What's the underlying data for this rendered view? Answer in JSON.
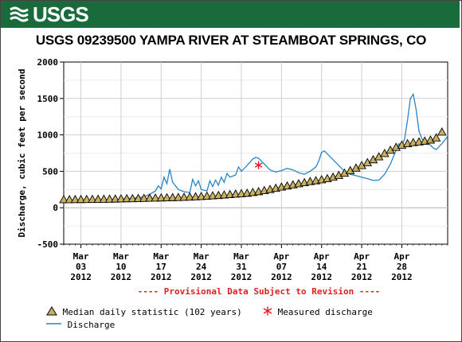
{
  "header": {
    "logo_text": "USGS",
    "title": "USGS 09239500 YAMPA RIVER AT STEAMBOAT SPRINGS, CO"
  },
  "colors": {
    "banner": "#1a6b3c",
    "discharge": "#2a84c6",
    "median_marker_fill": "#c8b061",
    "measured": "#e02020",
    "provisional": "#e02020"
  },
  "chart_data": {
    "type": "line",
    "title": "USGS 09239500 YAMPA RIVER AT STEAMBOAT SPRINGS, CO",
    "ylabel": "Discharge, cubic feet per second",
    "xlabel": "",
    "ylim": [
      -500,
      2000
    ],
    "yticks": [
      -500,
      0,
      500,
      1000,
      1500,
      2000
    ],
    "xlim": [
      "2012-02-29",
      "2012-05-06"
    ],
    "xticks": [
      {
        "date": "2012-03-03",
        "line1": "Mar",
        "line2": "03",
        "line3": "2012"
      },
      {
        "date": "2012-03-10",
        "line1": "Mar",
        "line2": "10",
        "line3": "2012"
      },
      {
        "date": "2012-03-17",
        "line1": "Mar",
        "line2": "17",
        "line3": "2012"
      },
      {
        "date": "2012-03-24",
        "line1": "Mar",
        "line2": "24",
        "line3": "2012"
      },
      {
        "date": "2012-03-31",
        "line1": "Mar",
        "line2": "31",
        "line3": "2012"
      },
      {
        "date": "2012-04-07",
        "line1": "Apr",
        "line2": "07",
        "line3": "2012"
      },
      {
        "date": "2012-04-14",
        "line1": "Apr",
        "line2": "14",
        "line3": "2012"
      },
      {
        "date": "2012-04-21",
        "line1": "Apr",
        "line2": "21",
        "line3": "2012"
      },
      {
        "date": "2012-04-28",
        "line1": "Apr",
        "line2": "28",
        "line3": "2012"
      }
    ],
    "annotation": "---- Provisional Data Subject to Revision ----",
    "grid": true,
    "series": [
      {
        "name": "Median daily statistic (102 years)",
        "marker": "triangle",
        "points": [
          [
            "2012-02-29",
            112
          ],
          [
            "2012-03-01",
            112
          ],
          [
            "2012-03-02",
            113
          ],
          [
            "2012-03-03",
            114
          ],
          [
            "2012-03-04",
            115
          ],
          [
            "2012-03-05",
            116
          ],
          [
            "2012-03-06",
            117
          ],
          [
            "2012-03-07",
            118
          ],
          [
            "2012-03-08",
            119
          ],
          [
            "2012-03-09",
            121
          ],
          [
            "2012-03-10",
            123
          ],
          [
            "2012-03-11",
            125
          ],
          [
            "2012-03-12",
            126
          ],
          [
            "2012-03-13",
            128
          ],
          [
            "2012-03-14",
            130
          ],
          [
            "2012-03-15",
            132
          ],
          [
            "2012-03-16",
            134
          ],
          [
            "2012-03-17",
            136
          ],
          [
            "2012-03-18",
            138
          ],
          [
            "2012-03-19",
            140
          ],
          [
            "2012-03-20",
            142
          ],
          [
            "2012-03-21",
            145
          ],
          [
            "2012-03-22",
            148
          ],
          [
            "2012-03-23",
            152
          ],
          [
            "2012-03-24",
            156
          ],
          [
            "2012-03-25",
            160
          ],
          [
            "2012-03-26",
            165
          ],
          [
            "2012-03-27",
            170
          ],
          [
            "2012-03-28",
            176
          ],
          [
            "2012-03-29",
            182
          ],
          [
            "2012-03-30",
            188
          ],
          [
            "2012-03-31",
            194
          ],
          [
            "2012-04-01",
            200
          ],
          [
            "2012-04-02",
            210
          ],
          [
            "2012-04-03",
            222
          ],
          [
            "2012-04-04",
            236
          ],
          [
            "2012-04-05",
            252
          ],
          [
            "2012-04-06",
            268
          ],
          [
            "2012-04-07",
            285
          ],
          [
            "2012-04-08",
            300
          ],
          [
            "2012-04-09",
            315
          ],
          [
            "2012-04-10",
            330
          ],
          [
            "2012-04-11",
            345
          ],
          [
            "2012-04-12",
            360
          ],
          [
            "2012-04-13",
            372
          ],
          [
            "2012-04-14",
            385
          ],
          [
            "2012-04-15",
            400
          ],
          [
            "2012-04-16",
            420
          ],
          [
            "2012-04-17",
            445
          ],
          [
            "2012-04-18",
            475
          ],
          [
            "2012-04-19",
            510
          ],
          [
            "2012-04-20",
            545
          ],
          [
            "2012-04-21",
            580
          ],
          [
            "2012-04-22",
            620
          ],
          [
            "2012-04-23",
            660
          ],
          [
            "2012-04-24",
            700
          ],
          [
            "2012-04-25",
            745
          ],
          [
            "2012-04-26",
            790
          ],
          [
            "2012-04-27",
            830
          ],
          [
            "2012-04-28",
            860
          ],
          [
            "2012-04-29",
            880
          ],
          [
            "2012-04-30",
            895
          ],
          [
            "2012-05-01",
            905
          ],
          [
            "2012-05-02",
            915
          ],
          [
            "2012-05-03",
            930
          ],
          [
            "2012-05-04",
            960
          ],
          [
            "2012-05-05",
            1040
          ]
        ]
      },
      {
        "name": "Measured discharge",
        "marker": "asterisk",
        "points": [
          [
            "2012-04-03",
            585
          ]
        ]
      },
      {
        "name": "Discharge",
        "marker": "line",
        "points": [
          [
            "2012-02-29",
            100
          ],
          [
            "2012-03-01",
            98
          ],
          [
            "2012-03-02",
            96
          ],
          [
            "2012-03-03",
            95
          ],
          [
            "2012-03-04",
            97
          ],
          [
            "2012-03-05",
            100
          ],
          [
            "2012-03-06",
            102
          ],
          [
            "2012-03-07",
            104
          ],
          [
            "2012-03-08",
            108
          ],
          [
            "2012-03-09",
            112
          ],
          [
            "2012-03-10",
            118
          ],
          [
            "2012-03-11",
            122
          ],
          [
            "2012-03-12",
            130
          ],
          [
            "2012-03-13",
            140
          ],
          [
            "2012-03-14",
            150
          ],
          [
            "2012-03-15",
            185
          ],
          [
            "2012-03-16",
            230
          ],
          [
            "2012-03-16.5",
            300
          ],
          [
            "2012-03-17",
            260
          ],
          [
            "2012-03-17.5",
            420
          ],
          [
            "2012-03-18",
            330
          ],
          [
            "2012-03-18.5",
            530
          ],
          [
            "2012-03-19",
            350
          ],
          [
            "2012-03-19.5",
            300
          ],
          [
            "2012-03-20",
            250
          ],
          [
            "2012-03-21",
            220
          ],
          [
            "2012-03-22",
            210
          ],
          [
            "2012-03-22.5",
            390
          ],
          [
            "2012-03-23",
            300
          ],
          [
            "2012-03-23.5",
            370
          ],
          [
            "2012-03-24",
            250
          ],
          [
            "2012-03-25",
            230
          ],
          [
            "2012-03-25.5",
            370
          ],
          [
            "2012-03-26",
            290
          ],
          [
            "2012-03-26.5",
            380
          ],
          [
            "2012-03-27",
            310
          ],
          [
            "2012-03-27.5",
            420
          ],
          [
            "2012-03-28",
            350
          ],
          [
            "2012-03-28.5",
            470
          ],
          [
            "2012-03-29",
            420
          ],
          [
            "2012-03-30",
            450
          ],
          [
            "2012-03-30.5",
            560
          ],
          [
            "2012-03-31",
            500
          ],
          [
            "2012-04-01",
            580
          ],
          [
            "2012-04-02",
            670
          ],
          [
            "2012-04-02.5",
            690
          ],
          [
            "2012-04-03",
            680
          ],
          [
            "2012-04-04",
            600
          ],
          [
            "2012-04-05",
            520
          ],
          [
            "2012-04-06",
            490
          ],
          [
            "2012-04-07",
            510
          ],
          [
            "2012-04-08",
            540
          ],
          [
            "2012-04-09",
            520
          ],
          [
            "2012-04-10",
            480
          ],
          [
            "2012-04-11",
            460
          ],
          [
            "2012-04-12",
            500
          ],
          [
            "2012-04-13",
            560
          ],
          [
            "2012-04-13.5",
            640
          ],
          [
            "2012-04-14",
            760
          ],
          [
            "2012-04-14.5",
            780
          ],
          [
            "2012-04-15",
            740
          ],
          [
            "2012-04-16",
            660
          ],
          [
            "2012-04-17",
            580
          ],
          [
            "2012-04-18",
            500
          ],
          [
            "2012-04-19",
            460
          ],
          [
            "2012-04-20",
            440
          ],
          [
            "2012-04-21",
            420
          ],
          [
            "2012-04-22",
            400
          ],
          [
            "2012-04-23",
            375
          ],
          [
            "2012-04-24",
            380
          ],
          [
            "2012-04-25",
            460
          ],
          [
            "2012-04-26",
            600
          ],
          [
            "2012-04-27",
            790
          ],
          [
            "2012-04-27.5",
            880
          ],
          [
            "2012-04-28",
            840
          ],
          [
            "2012-04-28.5",
            950
          ],
          [
            "2012-04-29",
            1200
          ],
          [
            "2012-04-29.5",
            1500
          ],
          [
            "2012-04-30",
            1560
          ],
          [
            "2012-04-30.5",
            1350
          ],
          [
            "2012-05-01",
            1050
          ],
          [
            "2012-05-01.5",
            950
          ],
          [
            "2012-05-02",
            900
          ],
          [
            "2012-05-02.5",
            880
          ],
          [
            "2012-05-03",
            860
          ],
          [
            "2012-05-03.5",
            820
          ],
          [
            "2012-05-04",
            800
          ],
          [
            "2012-05-04.5",
            840
          ],
          [
            "2012-05-05",
            880
          ],
          [
            "2012-05-05.5",
            930
          ],
          [
            "2012-05-06",
            980
          ]
        ]
      }
    ]
  },
  "legend": {
    "median_label": "Median daily statistic (102 years)",
    "measured_label": "Measured discharge",
    "discharge_label": "Discharge"
  }
}
